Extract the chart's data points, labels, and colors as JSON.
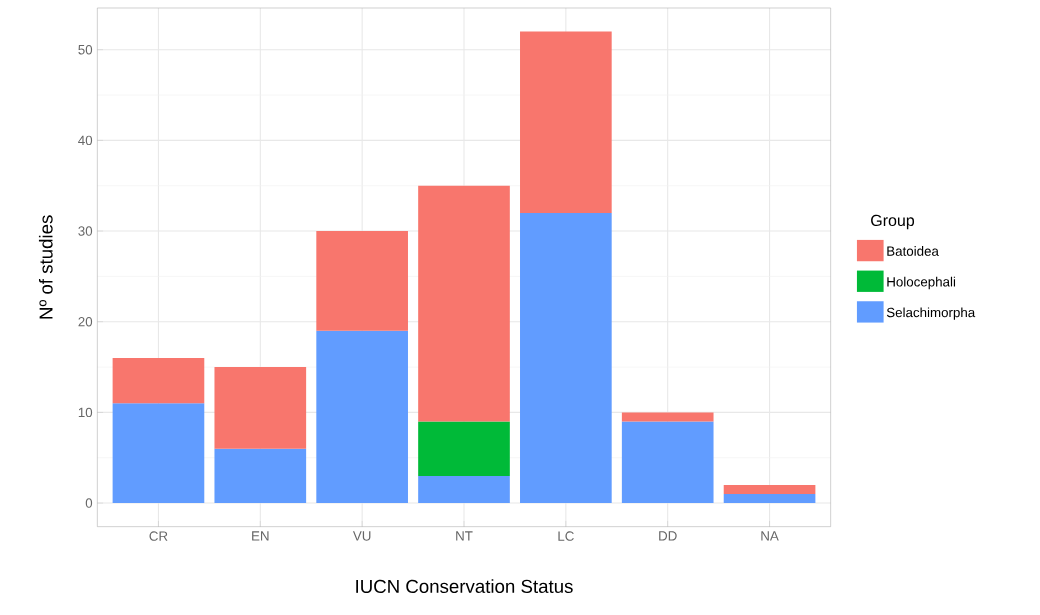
{
  "chart_data": {
    "type": "bar",
    "stacked": true,
    "xlabel": "IUCN Conservation Status",
    "ylabel": "Nº of studies",
    "legend_title": "Group",
    "categories": [
      "CR",
      "EN",
      "VU",
      "NT",
      "LC",
      "DD",
      "NA"
    ],
    "series": [
      {
        "name": "Selachimorpha",
        "color": "#619cff",
        "values": [
          11,
          6,
          19,
          3,
          32,
          9,
          1
        ]
      },
      {
        "name": "Holocephali",
        "color": "#00ba38",
        "values": [
          null,
          null,
          null,
          6,
          null,
          null,
          null
        ]
      },
      {
        "name": "Batoidea",
        "color": "#f8766d",
        "values": [
          5,
          9,
          11,
          26,
          20,
          1,
          1
        ]
      }
    ],
    "ylim": [
      -2.6,
      54.6
    ],
    "yticks": [
      0,
      10,
      20,
      30,
      40,
      50
    ],
    "grid": true,
    "legend": "right"
  }
}
